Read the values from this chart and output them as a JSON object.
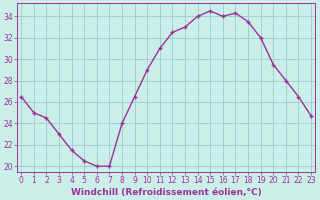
{
  "x": [
    0,
    1,
    2,
    3,
    4,
    5,
    6,
    7,
    8,
    9,
    10,
    11,
    12,
    13,
    14,
    15,
    16,
    17,
    18,
    19,
    20,
    21,
    22,
    23
  ],
  "y": [
    26.5,
    25.0,
    24.5,
    23.0,
    21.5,
    20.5,
    20.0,
    20.0,
    24.0,
    26.5,
    29.0,
    31.0,
    32.5,
    33.0,
    34.0,
    34.5,
    34.0,
    34.3,
    33.5,
    32.0,
    29.5,
    28.0,
    26.5,
    24.7
  ],
  "line_color": "#993399",
  "marker": "+",
  "marker_size": 3,
  "marker_lw": 1.0,
  "line_width": 1.0,
  "bg_color": "#cceee8",
  "plot_bg_color": "#cceee8",
  "grid_color": "#99cccc",
  "xlabel": "Windchill (Refroidissement éolien,°C)",
  "xlabel_color": "#993399",
  "tick_color": "#993399",
  "spine_color": "#993399",
  "ylim": [
    19.5,
    35.2
  ],
  "xlim": [
    -0.3,
    23.3
  ],
  "yticks": [
    20,
    22,
    24,
    26,
    28,
    30,
    32,
    34
  ],
  "xticks": [
    0,
    1,
    2,
    3,
    4,
    5,
    6,
    7,
    8,
    9,
    10,
    11,
    12,
    13,
    14,
    15,
    16,
    17,
    18,
    19,
    20,
    21,
    22,
    23
  ],
  "xlabel_fontsize": 6.5,
  "tick_fontsize": 5.5
}
